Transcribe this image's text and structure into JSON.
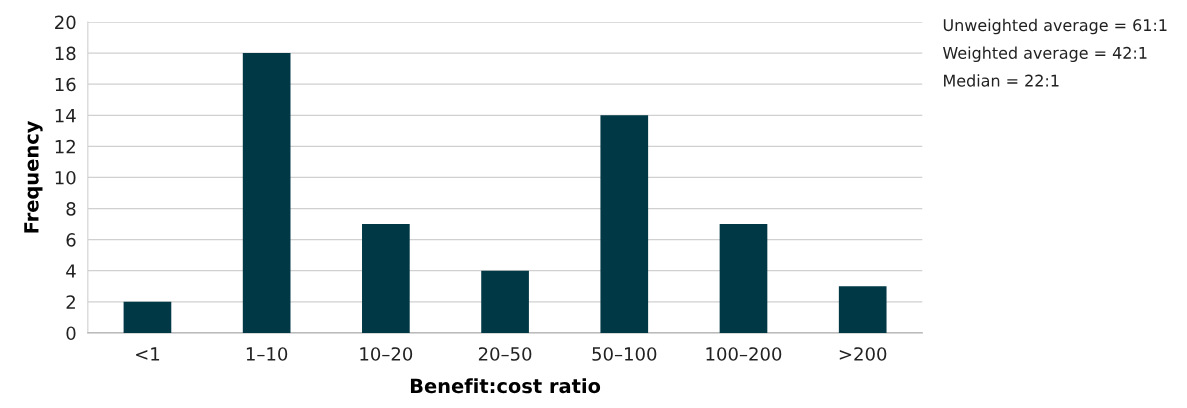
{
  "chart_data": {
    "type": "bar",
    "xlabel": "Benefit:cost ratio",
    "ylabel": "Frequency",
    "categories": [
      "<1",
      "1–10",
      "10–20",
      "20–50",
      "50–100",
      "100–200",
      ">200"
    ],
    "values": [
      2,
      18,
      7,
      4,
      14,
      7,
      3
    ],
    "color": "#003845",
    "ylim": [
      0,
      20
    ],
    "yticks": [
      0,
      2,
      4,
      6,
      8,
      10,
      12,
      14,
      16,
      18,
      20
    ],
    "grid": "y",
    "annotations": [
      "Unweighted average = 61:1",
      "Weighted average = 42:1",
      "Median = 22:1"
    ]
  }
}
